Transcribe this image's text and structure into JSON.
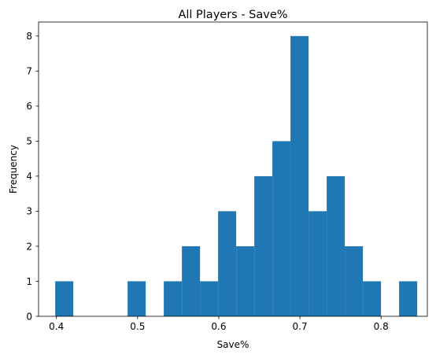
{
  "chart_data": {
    "type": "histogram",
    "title": "All Players - Save%",
    "xlabel": "Save%",
    "ylabel": "Frequency",
    "xlim": [
      0.378,
      0.857
    ],
    "ylim": [
      0,
      8.4
    ],
    "x_ticks": [
      0.4,
      0.5,
      0.6,
      0.7,
      0.8
    ],
    "x_tick_labels": [
      "0.4",
      "0.5",
      "0.6",
      "0.7",
      "0.8"
    ],
    "y_ticks": [
      0,
      1,
      2,
      3,
      4,
      5,
      6,
      7,
      8
    ],
    "y_tick_labels": [
      "0",
      "1",
      "2",
      "3",
      "4",
      "5",
      "6",
      "7",
      "8"
    ],
    "bin_edges": [
      0.3985,
      0.4208,
      0.4431,
      0.4654,
      0.4877,
      0.51,
      0.5323,
      0.5546,
      0.5769,
      0.5992,
      0.6215,
      0.6438,
      0.6661,
      0.6884,
      0.7107,
      0.733,
      0.7553,
      0.7776,
      0.7999,
      0.8222,
      0.8445
    ],
    "counts": [
      1,
      0,
      0,
      0,
      1,
      0,
      1,
      2,
      1,
      3,
      2,
      4,
      5,
      8,
      3,
      4,
      2,
      1,
      0,
      1
    ],
    "bar_color": "#1f77b4",
    "grid": false,
    "legend": "none"
  }
}
